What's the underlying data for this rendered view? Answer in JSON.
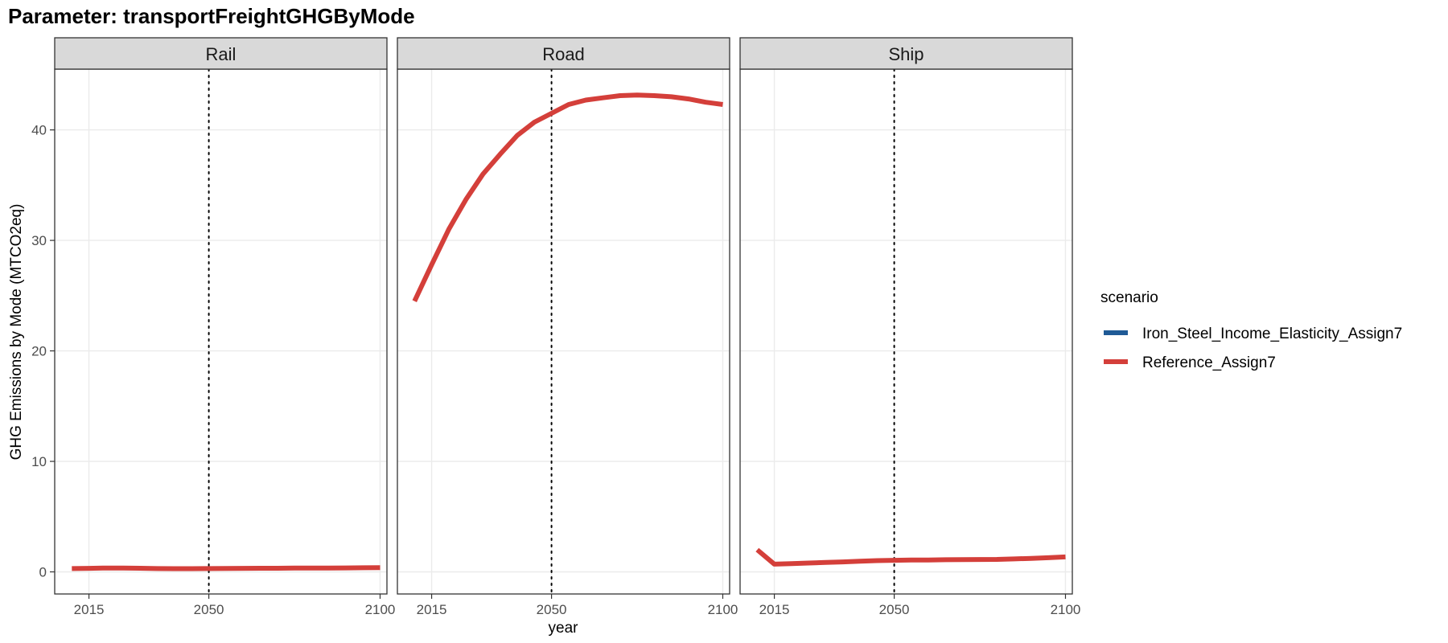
{
  "chart_data": {
    "type": "line",
    "title": "Parameter: transportFreightGHGByMode",
    "xlabel": "year",
    "ylabel": "GHG Emissions by Mode (MTCO2eq)",
    "xlim": [
      2005,
      2102
    ],
    "ylim": [
      -2,
      45.5
    ],
    "x_ticks": [
      2015,
      2050,
      2100
    ],
    "y_ticks": [
      0,
      10,
      20,
      30,
      40
    ],
    "reference_line_x": 2050,
    "grid": true,
    "legend": {
      "title": "scenario",
      "placement": "right",
      "entries": [
        {
          "name": "Iron_Steel_Income_Elasticity_Assign7",
          "color": "#1f5a96"
        },
        {
          "name": "Reference_Assign7",
          "color": "#d43f3a"
        }
      ]
    },
    "facets": [
      {
        "label": "Rail",
        "series": [
          {
            "name": "Reference_Assign7",
            "x": [
              2010,
              2015,
              2020,
              2025,
              2030,
              2035,
              2040,
              2045,
              2050,
              2055,
              2060,
              2065,
              2070,
              2075,
              2080,
              2085,
              2090,
              2095,
              2100
            ],
            "values": [
              0.3,
              0.32,
              0.35,
              0.35,
              0.33,
              0.3,
              0.29,
              0.29,
              0.3,
              0.31,
              0.32,
              0.33,
              0.33,
              0.34,
              0.34,
              0.35,
              0.36,
              0.37,
              0.38
            ]
          }
        ]
      },
      {
        "label": "Road",
        "series": [
          {
            "name": "Reference_Assign7",
            "x": [
              2010,
              2015,
              2020,
              2025,
              2030,
              2035,
              2040,
              2045,
              2050,
              2055,
              2060,
              2065,
              2070,
              2075,
              2080,
              2085,
              2090,
              2095,
              2100
            ],
            "values": [
              24.5,
              27.8,
              31.0,
              33.7,
              36.0,
              37.8,
              39.5,
              40.7,
              41.5,
              42.3,
              42.7,
              42.9,
              43.1,
              43.15,
              43.1,
              43.0,
              42.8,
              42.5,
              42.3
            ]
          }
        ]
      },
      {
        "label": "Ship",
        "series": [
          {
            "name": "Reference_Assign7",
            "x": [
              2010,
              2015,
              2020,
              2025,
              2030,
              2035,
              2040,
              2045,
              2050,
              2055,
              2060,
              2065,
              2070,
              2075,
              2080,
              2085,
              2090,
              2095,
              2100
            ],
            "values": [
              2.0,
              0.7,
              0.75,
              0.8,
              0.85,
              0.9,
              0.97,
              1.02,
              1.05,
              1.07,
              1.08,
              1.1,
              1.11,
              1.12,
              1.13,
              1.17,
              1.22,
              1.28,
              1.35
            ]
          }
        ]
      }
    ]
  }
}
